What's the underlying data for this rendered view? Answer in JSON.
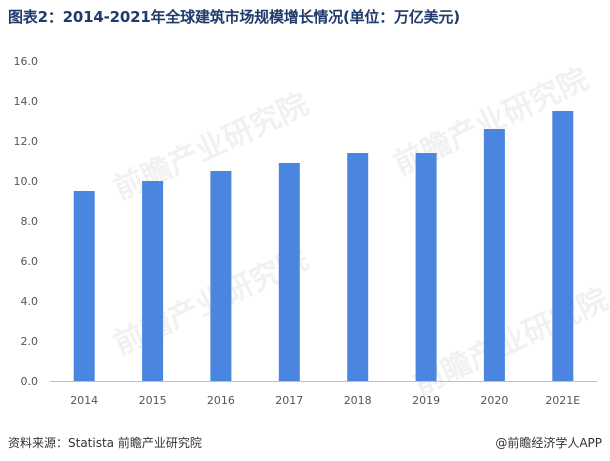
{
  "title": "图表2：2014-2021年全球建筑市场规模增长情况(单位：万亿美元)",
  "chart_data": {
    "type": "bar",
    "categories": [
      "2014",
      "2015",
      "2016",
      "2017",
      "2018",
      "2019",
      "2020",
      "2021E"
    ],
    "values": [
      9.5,
      10.0,
      10.5,
      10.9,
      11.4,
      11.4,
      12.6,
      13.5
    ],
    "ylim": [
      0,
      16
    ],
    "yticks": [
      "0.0",
      "2.0",
      "4.0",
      "6.0",
      "8.0",
      "10.0",
      "12.0",
      "14.0",
      "16.0"
    ],
    "bar_color": "#4a86e0",
    "grid": false
  },
  "footer": {
    "source": "资料来源：Statista 前瞻产业研究院",
    "brand": "@前瞻经济学人APP"
  },
  "watermark": "前瞻产业研究院"
}
